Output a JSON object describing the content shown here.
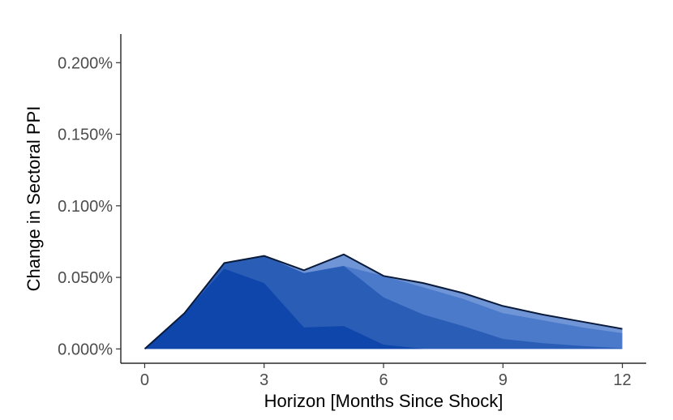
{
  "chart_data": {
    "type": "area",
    "title": "",
    "xlabel": "Horizon [Months Since Shock]",
    "ylabel": "Change in Sectoral PPI",
    "x": [
      0,
      1,
      2,
      3,
      4,
      5,
      6,
      7,
      8,
      9,
      10,
      11,
      12
    ],
    "xlim": [
      -0.6,
      12.6
    ],
    "ylim": [
      -0.0001,
      0.0022
    ],
    "x_ticks": [
      0,
      3,
      6,
      9,
      12
    ],
    "x_tick_labels": [
      "0",
      "3",
      "6",
      "9",
      "12"
    ],
    "y_ticks": [
      0,
      0.0005,
      0.001,
      0.0015,
      0.002
    ],
    "y_tick_labels": [
      "0.000%",
      "0.050%",
      "0.100%",
      "0.150%",
      "0.200%"
    ],
    "grid": false,
    "legend": "none",
    "stacking": "cumulative layers drawn from total down to first layer",
    "series": [
      {
        "color": "#6f95d6",
        "values": [
          0,
          0.00025,
          0.0006,
          0.00065,
          0.00055,
          0.00066,
          0.00051,
          0.00046,
          0.00039,
          0.0003,
          0.00024,
          0.00019,
          0.00014
        ]
      },
      {
        "color": "#4b7acb",
        "values": [
          0,
          0.00025,
          0.0006,
          0.00065,
          0.00053,
          0.00058,
          0.00051,
          0.00043,
          0.00035,
          0.00025,
          0.0002,
          0.00015,
          0.00011
        ]
      },
      {
        "color": "#2a5db5",
        "values": [
          0,
          0.00025,
          0.0006,
          0.00065,
          0.00053,
          0.00058,
          0.00036,
          0.00024,
          0.00016,
          7e-05,
          4e-05,
          2e-05,
          5e-06
        ]
      },
      {
        "color": "#0f46ac",
        "values": [
          0,
          0.00025,
          0.00056,
          0.00046,
          0.00015,
          0.00016,
          3e-05,
          0,
          0,
          0,
          0,
          0,
          0
        ]
      }
    ],
    "outline_color": "#0a1a3a"
  }
}
